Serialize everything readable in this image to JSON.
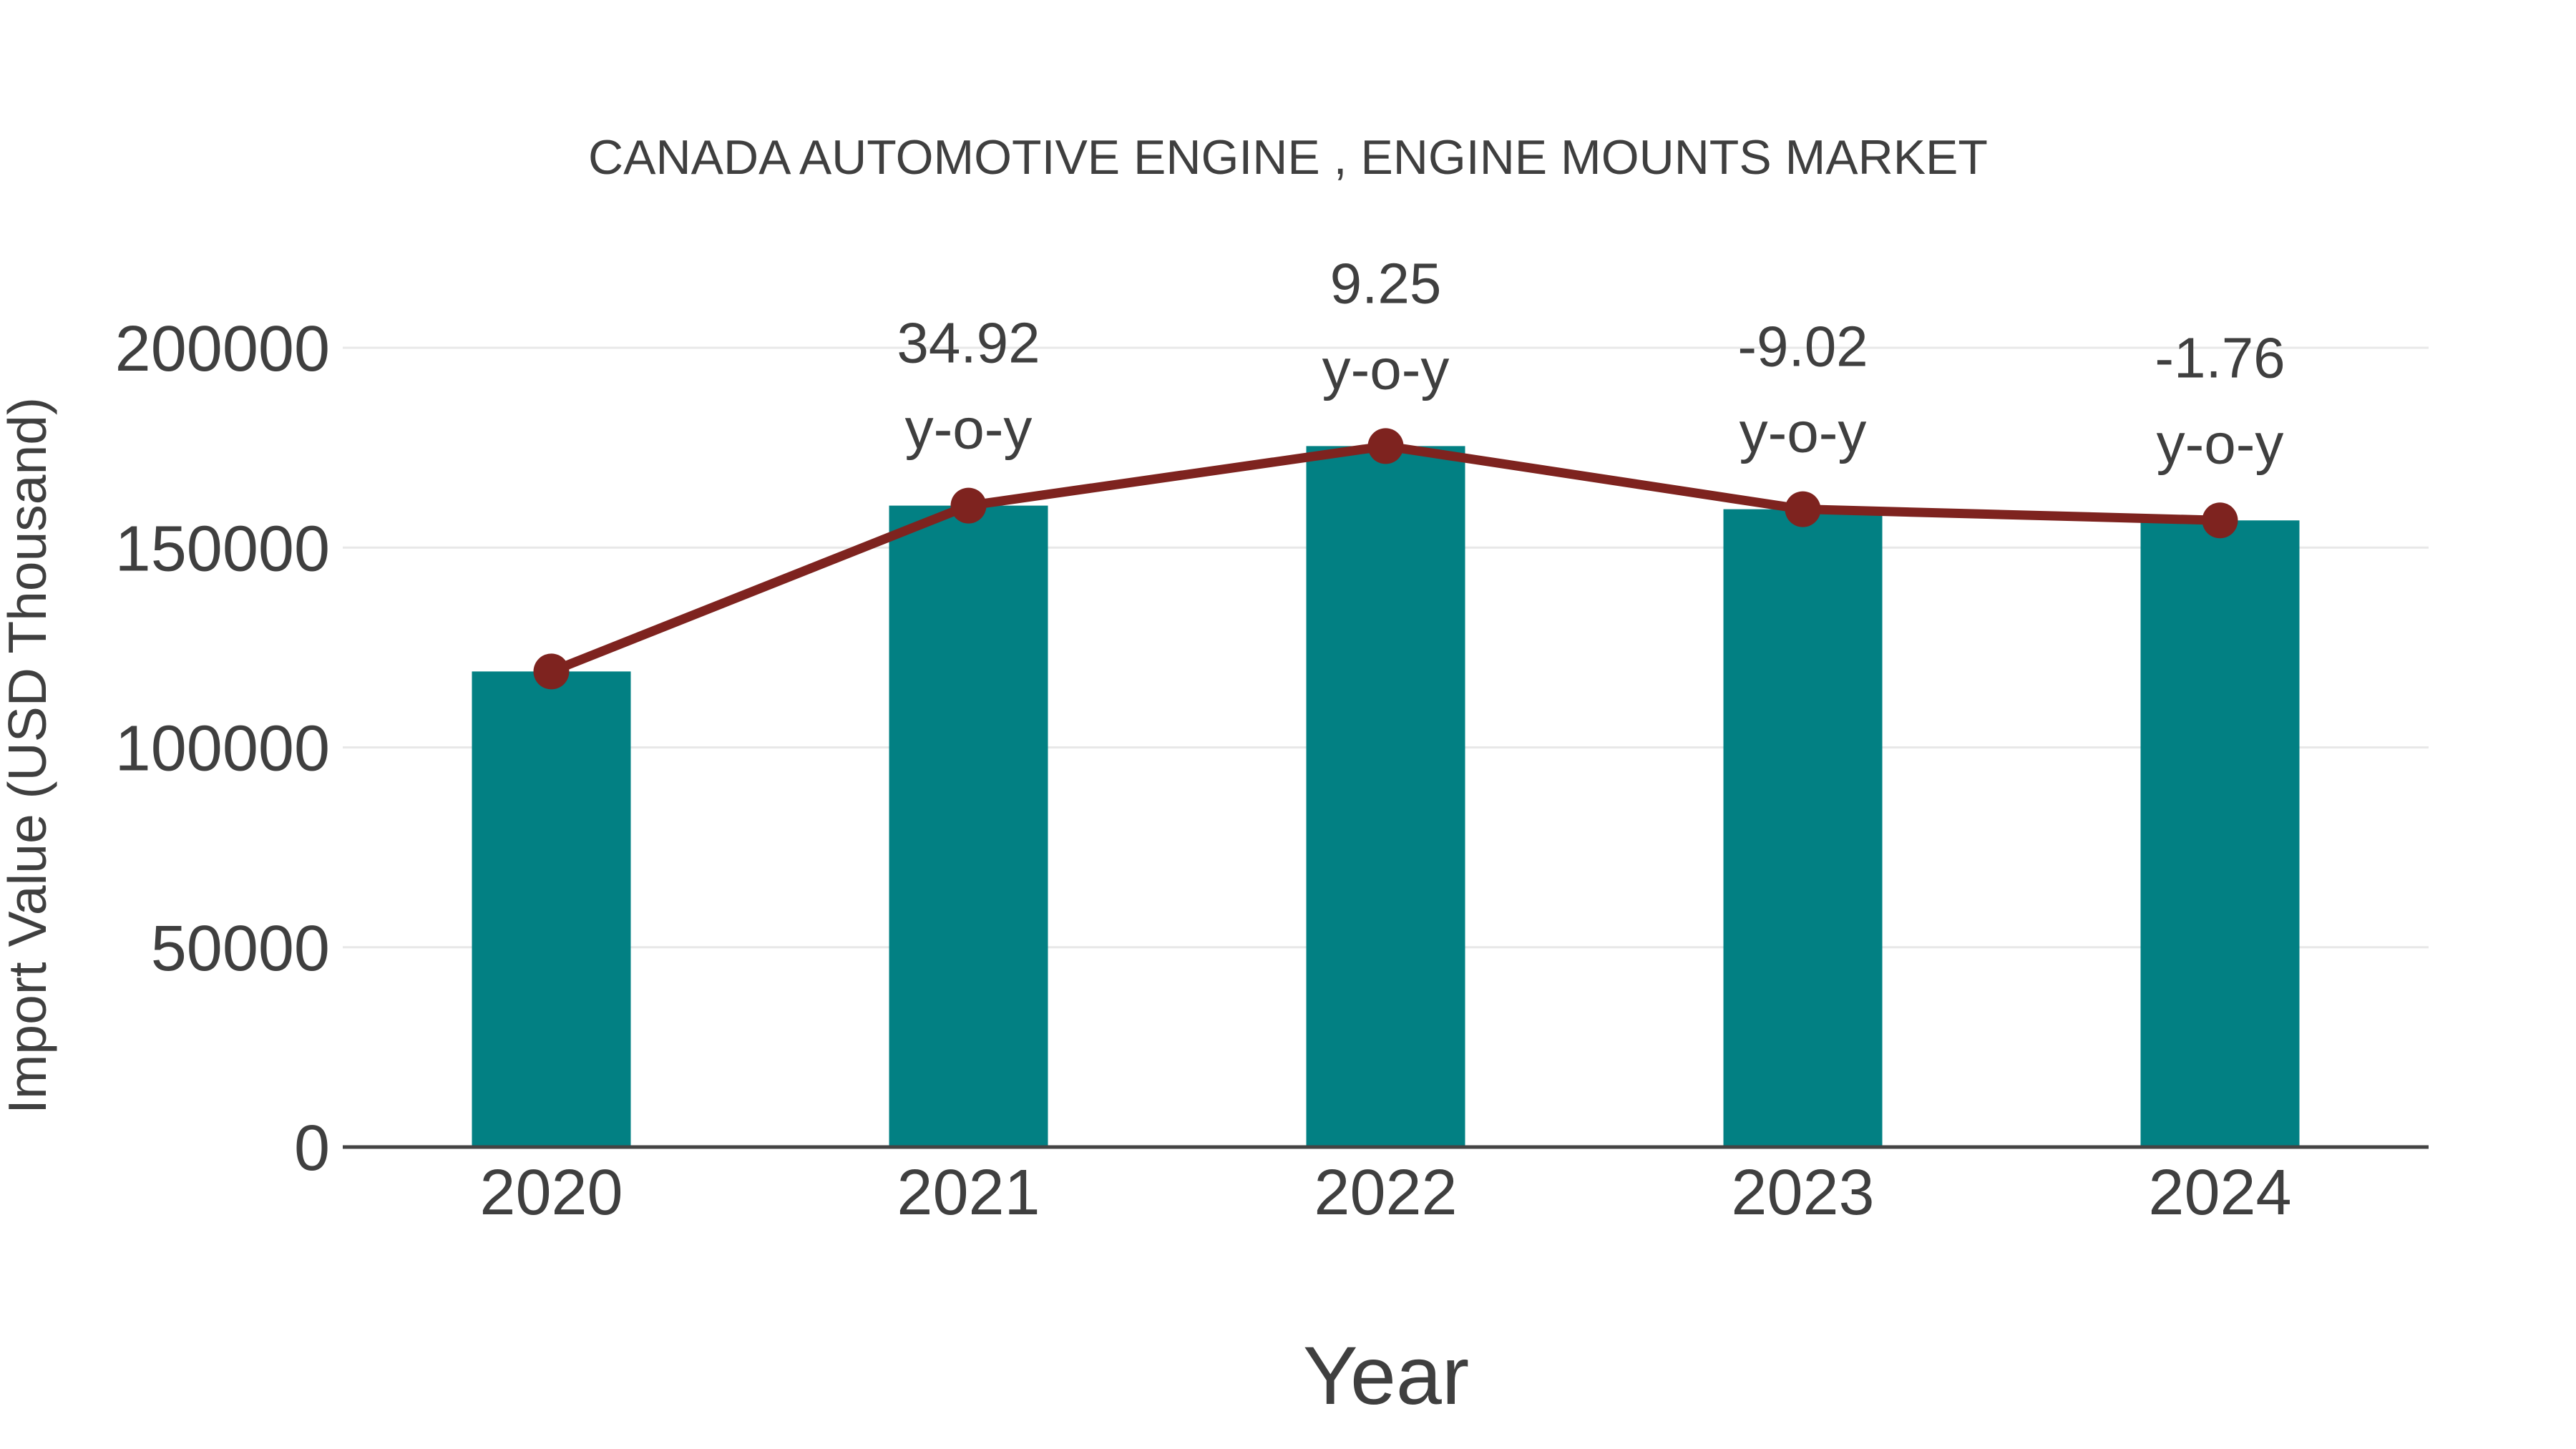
{
  "chart_data": {
    "type": "bar",
    "title": "CANADA AUTOMOTIVE ENGINE , ENGINE MOUNTS MARKET",
    "xlabel": "Year",
    "ylabel": "Import Value (USD Thousand)",
    "categories": [
      "2020",
      "2021",
      "2022",
      "2023",
      "2024"
    ],
    "series": [
      {
        "name": "import-value-bars",
        "type": "bar",
        "color": "#028083",
        "values": [
          119000,
          160500,
          175400,
          159600,
          156800
        ]
      },
      {
        "name": "import-value-trend",
        "type": "line",
        "color": "#7e231f",
        "values": [
          119000,
          160500,
          175400,
          159600,
          156800
        ]
      }
    ],
    "annotations": [
      {
        "category": "2021",
        "line1": "34.92",
        "line2": "y-o-y"
      },
      {
        "category": "2022",
        "line1": "9.25",
        "line2": "y-o-y"
      },
      {
        "category": "2023",
        "line1": "-9.02",
        "line2": "y-o-y"
      },
      {
        "category": "2024",
        "line1": "-1.76",
        "line2": "y-o-y"
      }
    ],
    "yticks": [
      0,
      50000,
      100000,
      150000,
      200000
    ],
    "ylim": [
      0,
      200000
    ],
    "grid": true,
    "legend": false,
    "colors": {
      "bar": "#028083",
      "line": "#7e231f",
      "marker": "#7e231f",
      "gridline": "#e8e8e8",
      "axis_line": "#444444",
      "text": "#3f3f3f"
    }
  }
}
